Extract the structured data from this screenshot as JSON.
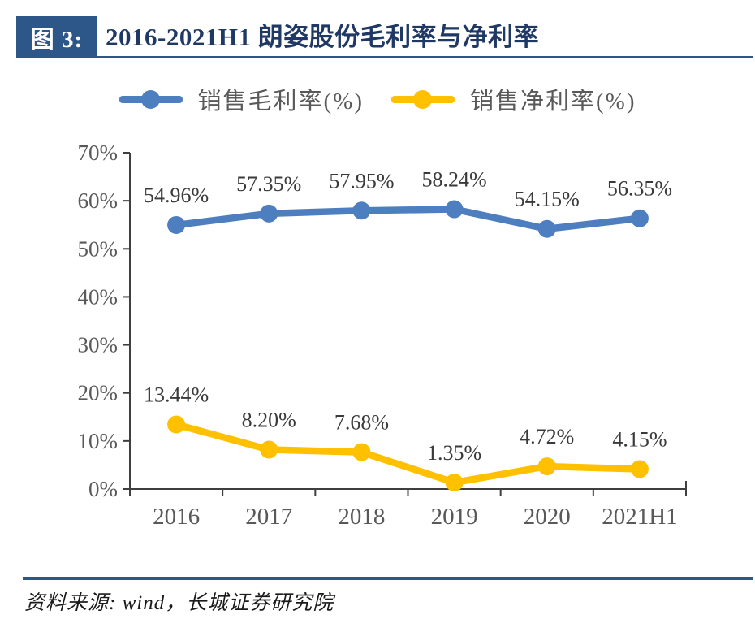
{
  "header": {
    "badge": "图 3:",
    "title": "2016-2021H1 朗姿股份毛利率与净利率"
  },
  "chart_data": {
    "type": "line",
    "title": "2016-2021H1 朗姿股份毛利率与净利率",
    "categories": [
      "2016",
      "2017",
      "2018",
      "2019",
      "2020",
      "2021H1"
    ],
    "series": [
      {
        "name": "销售毛利率(%)",
        "color": "#4d7ec0",
        "values": [
          54.96,
          57.35,
          57.95,
          58.24,
          54.15,
          56.35
        ],
        "labels": [
          "54.96%",
          "57.35%",
          "57.95%",
          "58.24%",
          "54.15%",
          "56.35%"
        ]
      },
      {
        "name": "销售净利率(%)",
        "color": "#ffc000",
        "values": [
          13.44,
          8.2,
          7.68,
          1.35,
          4.72,
          4.15
        ],
        "labels": [
          "13.44%",
          "8.20%",
          "7.68%",
          "1.35%",
          "4.72%",
          "4.15%"
        ]
      }
    ],
    "ylim": [
      0,
      70
    ],
    "y_tick_labels": [
      "0%",
      "10%",
      "20%",
      "30%",
      "40%",
      "50%",
      "60%",
      "70%"
    ],
    "grid": false,
    "legend_position": "top"
  },
  "footer": {
    "source": "资料来源: wind，长城证券研究院"
  },
  "colors": {
    "navy": "#1f3864",
    "rule_blue": "#2e5789",
    "axis_line": "#3f3f3f",
    "axis_text": "#595959",
    "data_label": "#3a3a3a"
  }
}
